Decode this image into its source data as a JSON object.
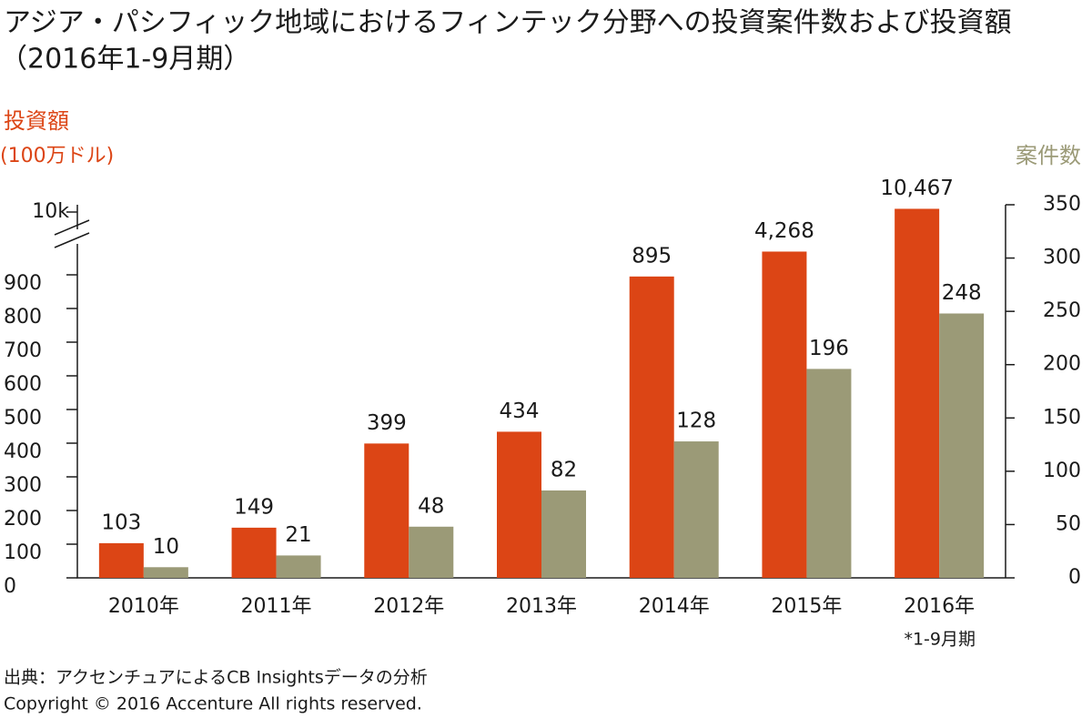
{
  "chart_data": {
    "type": "bar",
    "title": [
      "アジア・パシフィック地域におけるフィンテック分野への投資案件数および投資額",
      "（2016年1-9月期）"
    ],
    "y_axis_label": [
      "投資額",
      "(100万ドル)"
    ],
    "y2_axis_label": "案件数",
    "categories": [
      "2010年",
      "2011年",
      "2012年",
      "2013年",
      "2014年",
      "2015年",
      "2016年"
    ],
    "category_note": "*1-9月期",
    "series": [
      {
        "name": "投資額",
        "color": "#dc4515",
        "values": [
          103,
          149,
          399,
          434,
          895,
          4268,
          10467
        ],
        "value_labels": [
          "103",
          "149",
          "399",
          "434",
          "895",
          "4,268",
          "10,467"
        ]
      },
      {
        "name": "案件数",
        "color": "#9b9a77",
        "axis": "y2",
        "values": [
          10,
          21,
          48,
          82,
          128,
          196,
          248
        ]
      }
    ],
    "ylim": [
      0,
      10000
    ],
    "axis_break": [
      900,
      10000
    ],
    "yticks": [
      0,
      100,
      200,
      300,
      400,
      500,
      600,
      700,
      800,
      900,
      {
        "value": 10000,
        "label": "10k"
      }
    ],
    "y2lim": [
      0,
      350
    ],
    "y2ticks": [
      0,
      50,
      100,
      150,
      200,
      250,
      300,
      350
    ],
    "source": "出典：アクセンチュアによるCB Insightsデータの分析",
    "copyright": "Copyright © 2016 Accenture All rights reserved."
  }
}
